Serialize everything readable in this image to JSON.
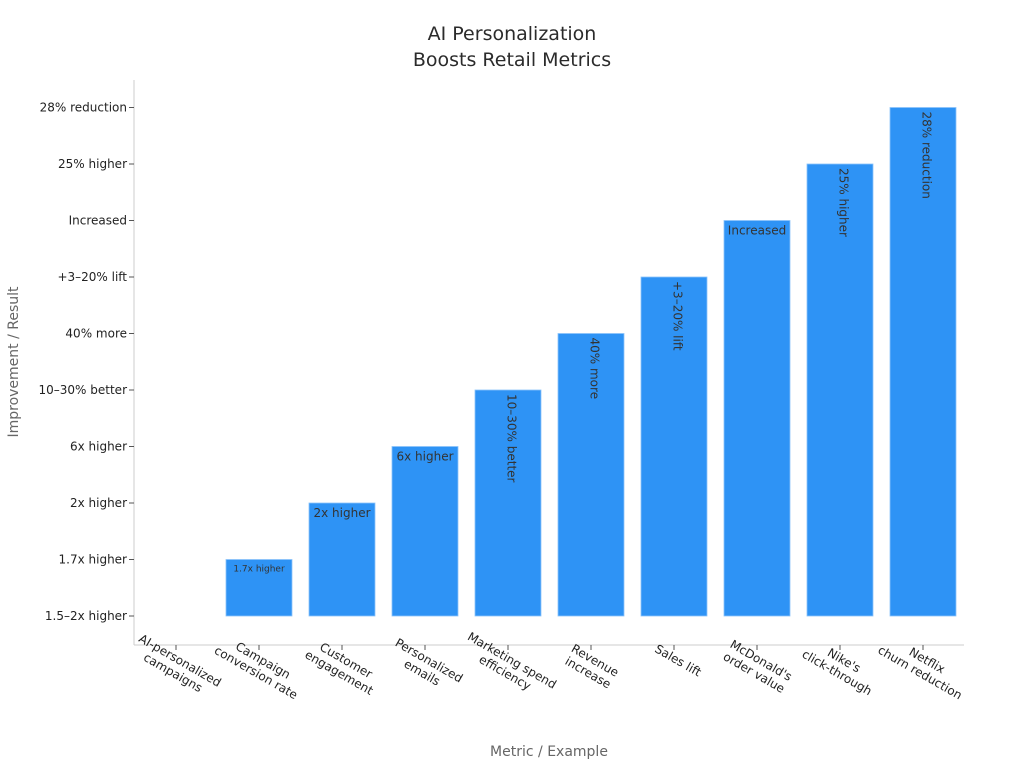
{
  "chart_data": {
    "type": "bar",
    "title": [
      "AI Personalization",
      "Boosts Retail Metrics"
    ],
    "xlabel": "Metric / Example",
    "ylabel": "Improvement / Result",
    "y_categories": [
      "1.5–2x higher",
      "1.7x higher",
      "2x higher",
      "6x higher",
      "10–30% better",
      "40% more",
      "+3–20% lift",
      "Increased",
      "25% higher",
      "28% reduction"
    ],
    "categories": [
      [
        "AI-personalized",
        "campaigns"
      ],
      [
        "Campaign",
        "conversion rate"
      ],
      [
        "Customer",
        "engagement"
      ],
      [
        "Personalized",
        "emails"
      ],
      [
        "Marketing spend",
        "efficiency"
      ],
      [
        "Revenue",
        "increase"
      ],
      [
        "Sales lift"
      ],
      [
        "McDonald's",
        "order value"
      ],
      [
        "Nike's",
        "click-through"
      ],
      [
        "Netflix",
        "churn reduction"
      ]
    ],
    "values": [
      "1.5–2x higher",
      "1.7x higher",
      "2x higher",
      "6x higher",
      "10–30% better",
      "40% more",
      "+3–20% lift",
      "Increased",
      "25% higher",
      "28% reduction"
    ],
    "data_labels": [
      "",
      "1.7x higher",
      "2x higher",
      "6x higher",
      "10–30% better",
      "40% more",
      "+3–20% lift",
      "Increased",
      "25% higher",
      "28% reduction"
    ],
    "grid": false,
    "legend": "none",
    "bar_color": "#2e93f5"
  }
}
